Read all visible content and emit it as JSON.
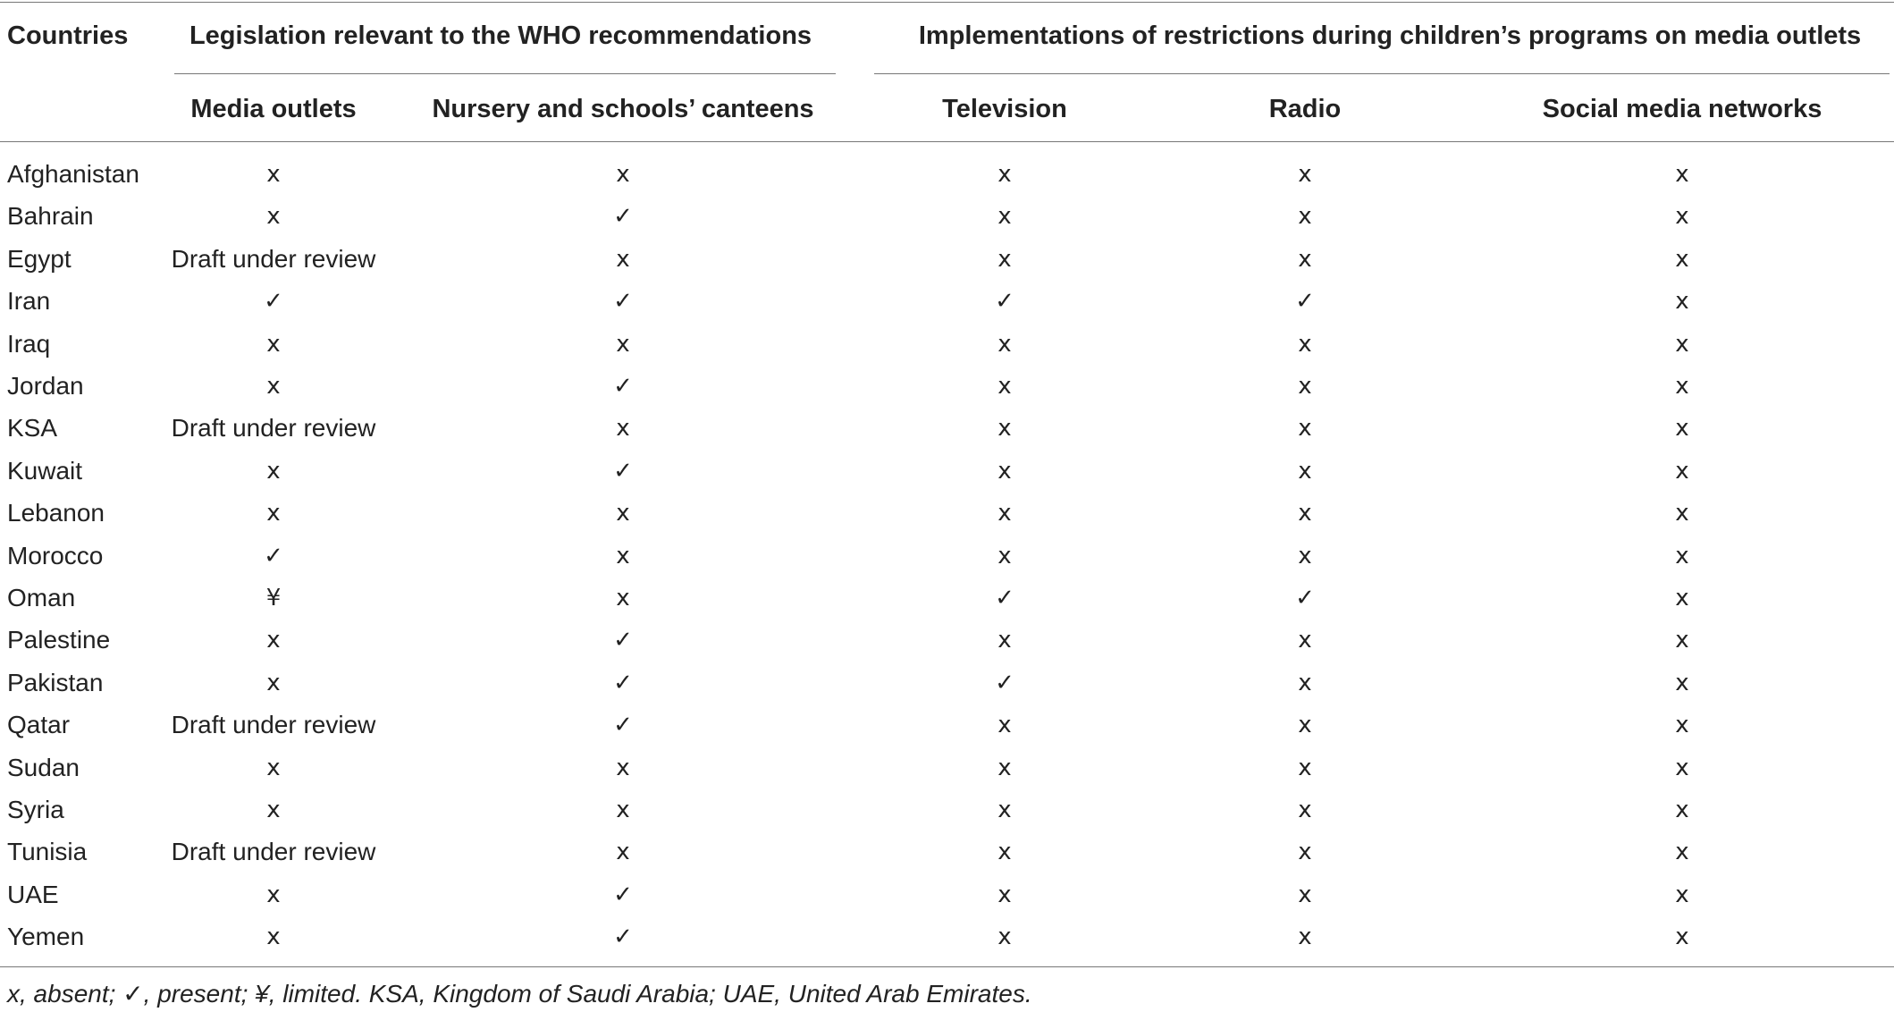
{
  "table": {
    "columns": {
      "country": "Countries",
      "group_legislation": "Legislation relevant to the WHO recommendations",
      "group_implementation": "Implementations of restrictions during children’s programs on media outlets",
      "media_outlets": "Media outlets",
      "canteens": "Nursery and schools’ canteens",
      "television": "Television",
      "radio": "Radio",
      "social_media": "Social media networks"
    },
    "rows": [
      {
        "country": "Afghanistan",
        "media_outlets": "x",
        "canteens": "x",
        "television": "x",
        "radio": "x",
        "social_media": "x"
      },
      {
        "country": "Bahrain",
        "media_outlets": "x",
        "canteens": "✓",
        "television": "x",
        "radio": "x",
        "social_media": "x"
      },
      {
        "country": "Egypt",
        "media_outlets": "Draft under review",
        "canteens": "x",
        "television": "x",
        "radio": "x",
        "social_media": "x"
      },
      {
        "country": "Iran",
        "media_outlets": "✓",
        "canteens": "✓",
        "television": "✓",
        "radio": "✓",
        "social_media": "x"
      },
      {
        "country": "Iraq",
        "media_outlets": "x",
        "canteens": "x",
        "television": "x",
        "radio": "x",
        "social_media": "x"
      },
      {
        "country": "Jordan",
        "media_outlets": "x",
        "canteens": "✓",
        "television": "x",
        "radio": "x",
        "social_media": "x"
      },
      {
        "country": "KSA",
        "media_outlets": "Draft under review",
        "canteens": "x",
        "television": "x",
        "radio": "x",
        "social_media": "x"
      },
      {
        "country": "Kuwait",
        "media_outlets": "x",
        "canteens": "✓",
        "television": "x",
        "radio": "x",
        "social_media": "x"
      },
      {
        "country": "Lebanon",
        "media_outlets": "x",
        "canteens": "x",
        "television": "x",
        "radio": "x",
        "social_media": "x"
      },
      {
        "country": "Morocco",
        "media_outlets": "✓",
        "canteens": "x",
        "television": "x",
        "radio": "x",
        "social_media": "x"
      },
      {
        "country": "Oman",
        "media_outlets": "¥",
        "canteens": "x",
        "television": "✓",
        "radio": "✓",
        "social_media": "x"
      },
      {
        "country": "Palestine",
        "media_outlets": "x",
        "canteens": "✓",
        "television": "x",
        "radio": "x",
        "social_media": "x"
      },
      {
        "country": "Pakistan",
        "media_outlets": "x",
        "canteens": "✓",
        "television": "✓",
        "radio": "x",
        "social_media": "x"
      },
      {
        "country": "Qatar",
        "media_outlets": "Draft under review",
        "canteens": "✓",
        "television": "x",
        "radio": "x",
        "social_media": "x"
      },
      {
        "country": "Sudan",
        "media_outlets": "x",
        "canteens": "x",
        "television": "x",
        "radio": "x",
        "social_media": "x"
      },
      {
        "country": "Syria",
        "media_outlets": "x",
        "canteens": "x",
        "television": "x",
        "radio": "x",
        "social_media": "x"
      },
      {
        "country": "Tunisia",
        "media_outlets": "Draft under review",
        "canteens": "x",
        "television": "x",
        "radio": "x",
        "social_media": "x"
      },
      {
        "country": "UAE",
        "media_outlets": "x",
        "canteens": "✓",
        "television": "x",
        "radio": "x",
        "social_media": "x"
      },
      {
        "country": "Yemen",
        "media_outlets": "x",
        "canteens": "✓",
        "television": "x",
        "radio": "x",
        "social_media": "x"
      }
    ]
  },
  "footnote": "x, absent; ✓, present; ¥, limited. KSA, Kingdom of Saudi Arabia; UAE, United Arab Emirates."
}
